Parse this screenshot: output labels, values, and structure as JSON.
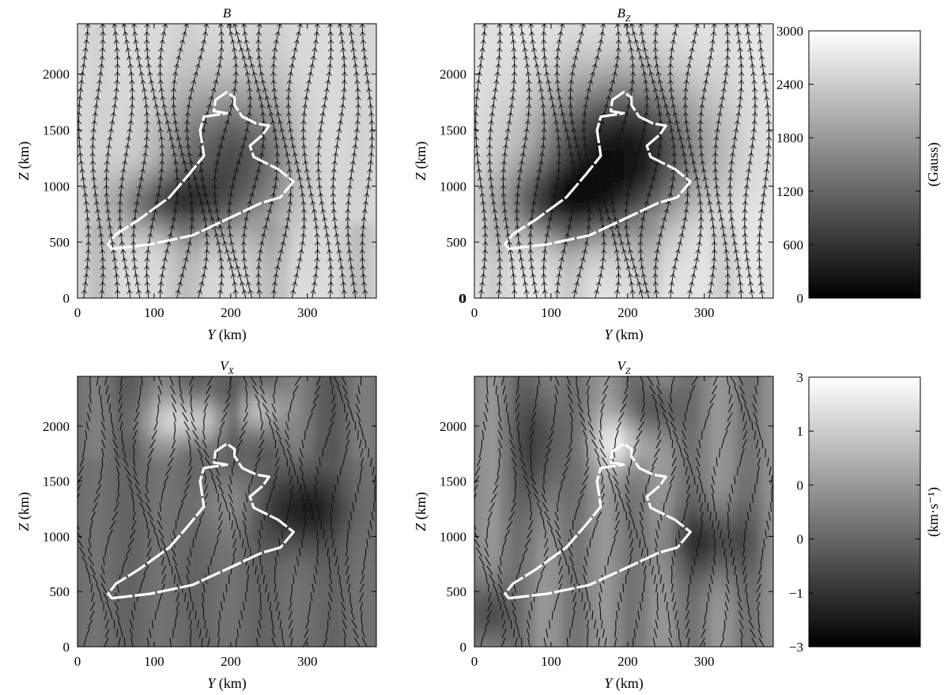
{
  "chart_data": [
    {
      "type": "heatmap",
      "title": "B",
      "subscript": "",
      "xlabel": "Y (km)",
      "ylabel": "Z (km)",
      "xlim": [
        0,
        390
      ],
      "ylim": [
        0,
        2450
      ],
      "xticks": [
        0,
        100,
        200,
        300
      ],
      "yticks": [
        0,
        500,
        1000,
        1500,
        2000
      ],
      "field_style": "magnetic",
      "colormap": "gray",
      "contour": "white dashed"
    },
    {
      "type": "heatmap",
      "title": "B",
      "subscript": "Z",
      "xlabel": "Y (km)",
      "ylabel": "Z (km)",
      "xlim": [
        0,
        390
      ],
      "ylim": [
        0,
        2450
      ],
      "xticks": [
        0,
        100,
        200,
        300
      ],
      "yticks": [
        0,
        500,
        1000,
        1500,
        2000
      ],
      "field_style": "magnetic",
      "colormap": "gray",
      "contour": "white dashed"
    },
    {
      "type": "heatmap",
      "title": "V",
      "subscript": "X",
      "xlabel": "Y (km)",
      "ylabel": "Z (km)",
      "xlim": [
        0,
        390
      ],
      "ylim": [
        0,
        2450
      ],
      "xticks": [
        0,
        100,
        200,
        300
      ],
      "yticks": [
        0,
        500,
        1000,
        1500,
        2000
      ],
      "field_style": "velocity",
      "colormap": "gray",
      "contour": "white dashed"
    },
    {
      "type": "heatmap",
      "title": "V",
      "subscript": "Z",
      "xlabel": "Y (km)",
      "ylabel": "Z (km)",
      "xlim": [
        0,
        390
      ],
      "ylim": [
        0,
        2450
      ],
      "xticks": [
        0,
        100,
        200,
        300
      ],
      "yticks": [
        0,
        500,
        1000,
        1500,
        2000
      ],
      "field_style": "velocity",
      "colormap": "gray",
      "contour": "white dashed"
    }
  ],
  "colorbars": [
    {
      "label": "(Gauss)",
      "ticks": [
        "0",
        "600",
        "1200",
        "1800",
        "2400",
        "3000"
      ],
      "range": [
        0,
        3000
      ]
    },
    {
      "label": "(km·s⁻¹)",
      "ticks": [
        "−3",
        "−1",
        "0",
        "0",
        "1",
        "3"
      ],
      "range": [
        -3,
        3
      ]
    }
  ],
  "contour_path_km": [
    [
      45,
      440
    ],
    [
      95,
      480
    ],
    [
      150,
      560
    ],
    [
      200,
      720
    ],
    [
      240,
      850
    ],
    [
      265,
      900
    ],
    [
      282,
      1040
    ],
    [
      262,
      1150
    ],
    [
      230,
      1260
    ],
    [
      225,
      1360
    ],
    [
      242,
      1460
    ],
    [
      250,
      1540
    ],
    [
      233,
      1560
    ],
    [
      215,
      1620
    ],
    [
      205,
      1725
    ],
    [
      205,
      1790
    ],
    [
      195,
      1840
    ],
    [
      180,
      1770
    ],
    [
      178,
      1670
    ],
    [
      195,
      1650
    ],
    [
      165,
      1620
    ],
    [
      160,
      1500
    ],
    [
      165,
      1270
    ],
    [
      145,
      1100
    ],
    [
      120,
      900
    ],
    [
      80,
      700
    ],
    [
      50,
      570
    ],
    [
      40,
      480
    ]
  ],
  "stray_label": "0"
}
